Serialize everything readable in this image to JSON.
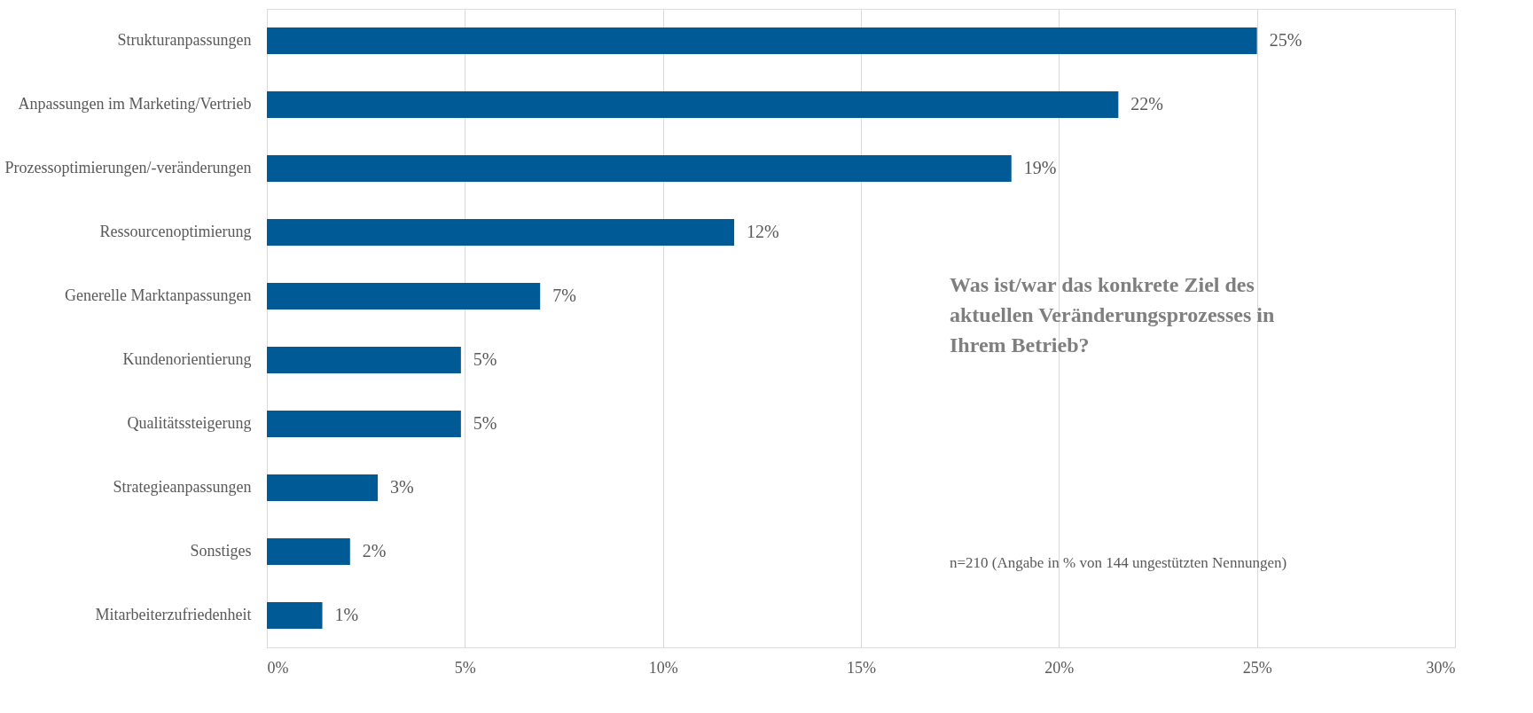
{
  "chart_data": {
    "type": "bar",
    "orientation": "horizontal",
    "categories": [
      "Strukturanpassungen",
      "Anpassungen im Marketing/Vertrieb",
      "Prozessoptimierungen/-veränderungen",
      "Ressourcenoptimierung",
      "Generelle Marktanpassungen",
      "Kundenorientierung",
      "Qualitätssteigerung",
      "Strategieanpassungen",
      "Sonstiges",
      "Mitarbeiterzufriedenheit"
    ],
    "values": [
      25.0,
      21.5,
      18.8,
      11.8,
      6.9,
      4.9,
      4.9,
      2.8,
      2.1,
      1.4
    ],
    "value_labels": [
      "25%",
      "22%",
      "19%",
      "12%",
      "7%",
      "5%",
      "5%",
      "3%",
      "2%",
      "1%"
    ],
    "color": "#005a96",
    "xlim": [
      0,
      30
    ],
    "xticks": [
      {
        "value": 0,
        "label": "0%"
      },
      {
        "value": 5,
        "label": "5%"
      },
      {
        "value": 10,
        "label": "10%"
      },
      {
        "value": 15,
        "label": "15%"
      },
      {
        "value": 20,
        "label": "20%"
      },
      {
        "value": 25,
        "label": "25%"
      },
      {
        "value": 30,
        "label": "30%"
      }
    ],
    "grid": "x",
    "annotations": [
      "Was ist/war das konkrete Ziel des aktuellen Veränderungsprozesses in Ihrem Betrieb?",
      "n=210 (Angabe in % von 144 ungestützten Nennungen)"
    ]
  }
}
